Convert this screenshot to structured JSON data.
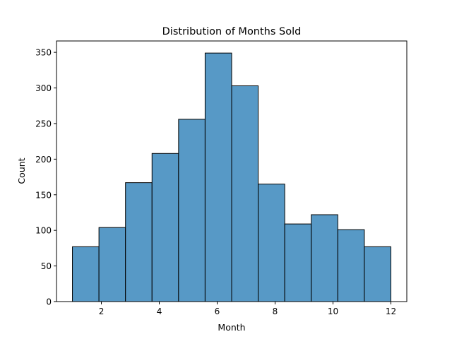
{
  "chart_data": {
    "type": "bar",
    "subtype": "histogram",
    "title": "Distribution of Months Sold",
    "xlabel": "Month",
    "ylabel": "Count",
    "bin_edges": [
      1.0,
      1.9167,
      2.8333,
      3.75,
      4.6667,
      5.5833,
      6.5,
      7.4167,
      8.3333,
      9.25,
      10.1667,
      11.0833,
      12.0
    ],
    "values": [
      77,
      104,
      167,
      208,
      256,
      349,
      303,
      165,
      109,
      122,
      101,
      77
    ],
    "xlim": [
      0.45,
      12.55
    ],
    "ylim": [
      0,
      366
    ],
    "xticks": [
      2,
      4,
      6,
      8,
      10,
      12
    ],
    "yticks": [
      0,
      50,
      100,
      150,
      200,
      250,
      300,
      350
    ],
    "grid": false,
    "colors": {
      "bar_fill": "#5799c6",
      "bar_edge": "#000000"
    }
  }
}
